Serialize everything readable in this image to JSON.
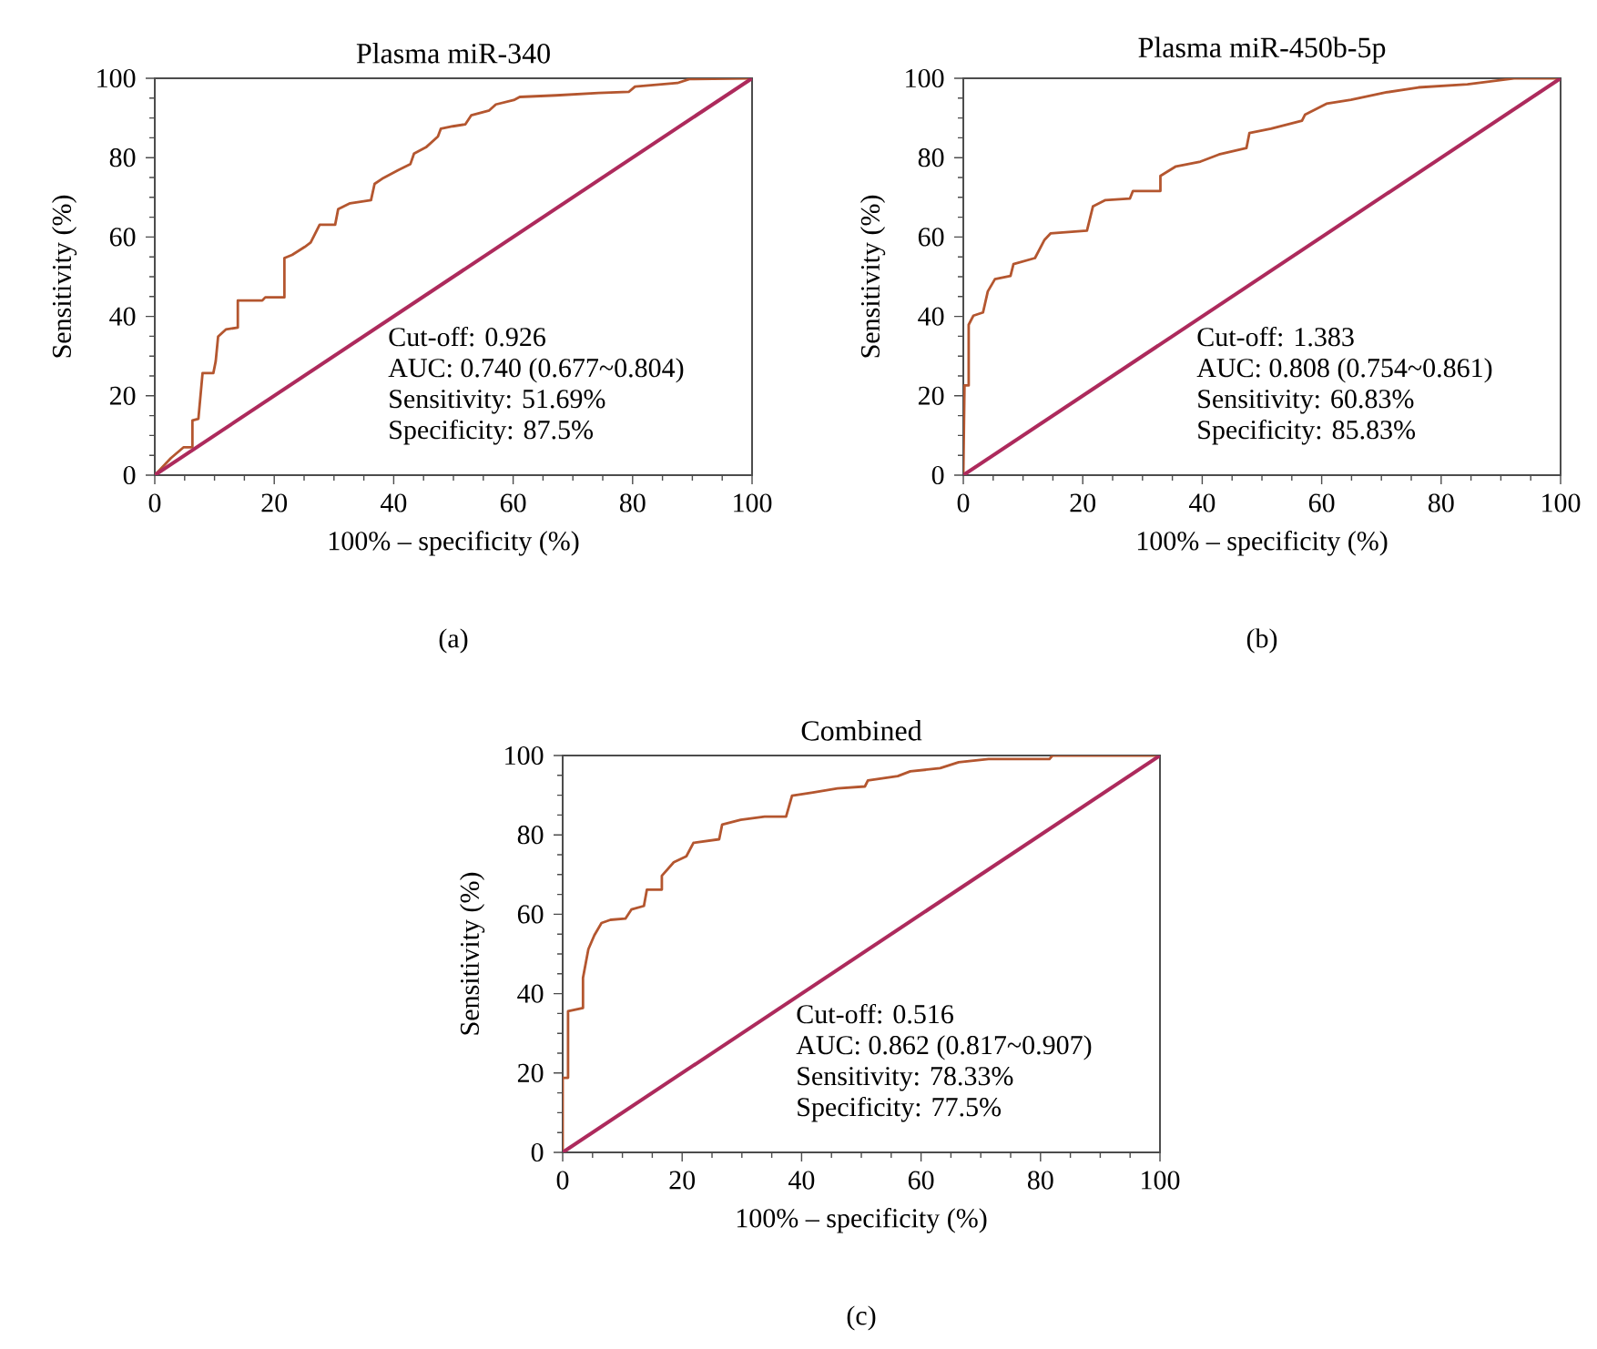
{
  "chart_data": [
    {
      "type": "line",
      "title": "Plasma miR-340",
      "xlabel": "100% – specificity (%)",
      "ylabel": "Sensitivity (%)",
      "xlim": [
        0,
        100
      ],
      "ylim": [
        0,
        100
      ],
      "xticks": [
        0,
        20,
        40,
        60,
        80,
        100
      ],
      "yticks": [
        0,
        20,
        40,
        60,
        80,
        100
      ],
      "series": [
        {
          "color": "#b4562f",
          "x": [
            0,
            2.7,
            4.8,
            6.3,
            6.3,
            7.3,
            8.0,
            9.8,
            10.2,
            10.6,
            11.9,
            13.9,
            13.9,
            18.0,
            18.5,
            21.7,
            21.7,
            23.0,
            25.1,
            26.1,
            27.6,
            30.2,
            30.7,
            32.7,
            36.2,
            36.8,
            38.3,
            40.8,
            42.8,
            43.4,
            45.4,
            47.4,
            47.9,
            49.9,
            52.0,
            53.0,
            56.0,
            57.1,
            60.1,
            61.1,
            67.2,
            74.3,
            79.4,
            80.4,
            87.5,
            89.5,
            100
          ],
          "values": [
            0,
            4.3,
            7.0,
            7.0,
            13.8,
            14.2,
            25.7,
            25.7,
            28.7,
            34.9,
            36.7,
            37.2,
            44.0,
            44.0,
            44.8,
            44.8,
            54.7,
            55.5,
            57.5,
            58.6,
            63.1,
            63.1,
            67.0,
            68.5,
            69.3,
            73.4,
            74.9,
            76.9,
            78.4,
            81.0,
            82.6,
            85.3,
            87.3,
            87.9,
            88.4,
            90.7,
            91.9,
            93.4,
            94.5,
            95.3,
            95.7,
            96.3,
            96.6,
            97.9,
            98.8,
            99.8,
            100
          ]
        },
        {
          "color": "#ad2a5c",
          "x": [
            0,
            100
          ],
          "values": [
            0,
            100
          ]
        }
      ],
      "annotations": [
        "Cut-off: 0.926",
        "AUC: 0.740 (0.677~0.804)",
        "Sensitivity: 51.69%",
        "Specificity: 87.5%",
        "(a)"
      ]
    },
    {
      "type": "line",
      "title": "Plasma miR-450b-5p",
      "xlabel": "100% – specificity (%)",
      "ylabel": "Sensitivity (%)",
      "xlim": [
        0,
        100
      ],
      "ylim": [
        0,
        100
      ],
      "xticks": [
        0,
        20,
        40,
        60,
        80,
        100
      ],
      "yticks": [
        0,
        20,
        40,
        60,
        80,
        100
      ],
      "series": [
        {
          "color": "#b4562f",
          "x": [
            0,
            0.2,
            0.9,
            0.9,
            1.7,
            3.3,
            4.1,
            5.3,
            7.9,
            8.4,
            12.0,
            13.6,
            14.6,
            20.7,
            21.7,
            23.8,
            27.9,
            28.4,
            33.0,
            33.0,
            35.6,
            39.7,
            42.8,
            47.4,
            47.9,
            51.5,
            56.7,
            57.2,
            60.8,
            64.9,
            71.0,
            76.2,
            84.4,
            92.5,
            100
          ],
          "values": [
            0,
            22.6,
            22.6,
            37.9,
            40.2,
            41.0,
            46.3,
            49.4,
            50.2,
            53.2,
            54.7,
            59.3,
            60.9,
            61.6,
            67.7,
            69.3,
            69.7,
            71.6,
            71.6,
            75.4,
            77.8,
            79.0,
            80.8,
            82.4,
            86.2,
            87.3,
            89.3,
            90.8,
            93.6,
            94.6,
            96.5,
            97.7,
            98.5,
            100,
            100
          ]
        },
        {
          "color": "#ad2a5c",
          "x": [
            0,
            100
          ],
          "values": [
            0,
            100
          ]
        }
      ],
      "annotations": [
        "Cut-off: 1.383",
        "AUC: 0.808 (0.754~0.861)",
        "Sensitivity: 60.83%",
        "Specificity: 85.83%",
        "(b)"
      ]
    },
    {
      "type": "line",
      "title": "Combined",
      "xlabel": "100% – specificity (%)",
      "ylabel": "Sensitivity (%)",
      "xlim": [
        0,
        100
      ],
      "ylim": [
        0,
        100
      ],
      "xticks": [
        0,
        20,
        40,
        60,
        80,
        100
      ],
      "yticks": [
        0,
        20,
        40,
        60,
        80,
        100
      ],
      "series": [
        {
          "color": "#b4562f",
          "x": [
            0,
            0,
            0.9,
            0.9,
            3.4,
            3.4,
            4.3,
            5.3,
            6.5,
            8.0,
            10.5,
            11.5,
            13.6,
            14.1,
            16.6,
            16.6,
            18.6,
            20.7,
            21.9,
            26.2,
            26.7,
            29.8,
            33.8,
            37.4,
            38.4,
            41.9,
            46.0,
            50.6,
            51.1,
            56.1,
            58.2,
            63.2,
            66.3,
            71.3,
            81.5,
            82.0,
            100
          ],
          "values": [
            0,
            18.8,
            18.8,
            35.6,
            36.4,
            44.0,
            51.2,
            54.7,
            57.8,
            58.6,
            58.9,
            61.2,
            62.1,
            66.2,
            66.2,
            69.7,
            73.1,
            74.6,
            78.0,
            78.9,
            82.6,
            83.8,
            84.6,
            84.6,
            89.9,
            90.7,
            91.7,
            92.2,
            93.7,
            94.8,
            96.0,
            96.8,
            98.3,
            99.1,
            99.1,
            100,
            100
          ]
        },
        {
          "color": "#ad2a5c",
          "x": [
            0,
            100
          ],
          "values": [
            0,
            100
          ]
        }
      ],
      "annotations": [
        "Cut-off: 0.516",
        "AUC: 0.862 (0.817~0.907)",
        "Sensitivity: 78.33%",
        "Specificity: 77.5%",
        "(c)"
      ]
    }
  ]
}
